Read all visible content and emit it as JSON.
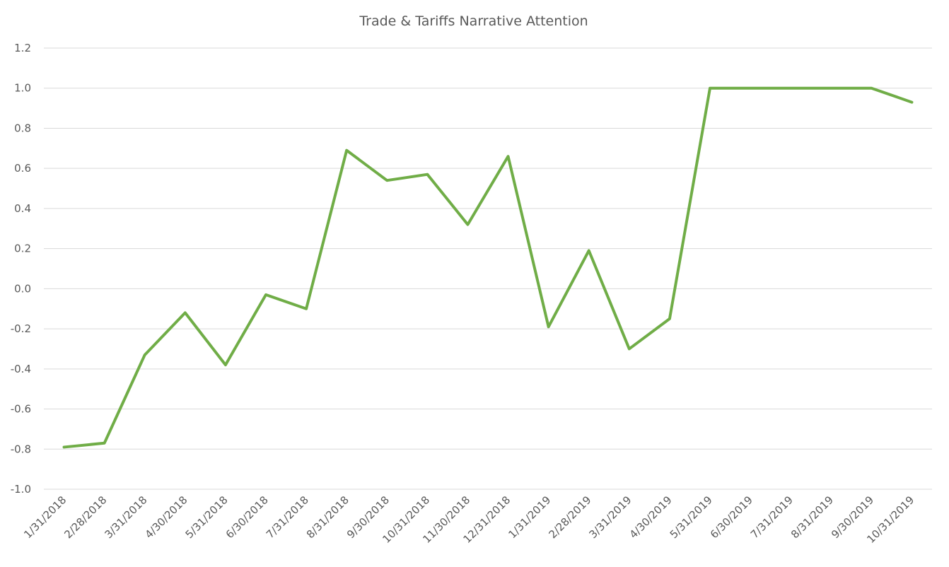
{
  "chart_data": {
    "type": "line",
    "title": "Trade & Tariffs Narrative Attention",
    "categories": [
      "1/31/2018",
      "2/28/2018",
      "3/31/2018",
      "4/30/2018",
      "5/31/2018",
      "6/30/2018",
      "7/31/2018",
      "8/31/2018",
      "9/30/2018",
      "10/31/2018",
      "11/30/2018",
      "12/31/2018",
      "1/31/2019",
      "2/28/2019",
      "3/31/2019",
      "4/30/2019",
      "5/31/2019",
      "6/30/2019",
      "7/31/2019",
      "8/31/2019",
      "9/30/2019",
      "10/31/2019"
    ],
    "series": [
      {
        "color": "#70ad47",
        "values": [
          -0.79,
          -0.77,
          -0.33,
          -0.12,
          -0.38,
          -0.03,
          -0.1,
          0.69,
          0.54,
          0.57,
          0.32,
          0.66,
          -0.19,
          0.19,
          -0.3,
          -0.15,
          1.0,
          1.0,
          1.0,
          1.0,
          1.0,
          0.93
        ]
      }
    ],
    "ylim": [
      -1.0,
      1.2
    ],
    "yticks": [
      {
        "value": -1.0,
        "label": "-1.0"
      },
      -0.8,
      -0.6,
      -0.4,
      -0.2,
      {
        "value": 0,
        "label": "0.0"
      },
      0.2,
      0.4,
      0.6,
      0.8,
      {
        "value": 1.0,
        "label": "1.0"
      },
      1.2
    ],
    "grid": true
  }
}
